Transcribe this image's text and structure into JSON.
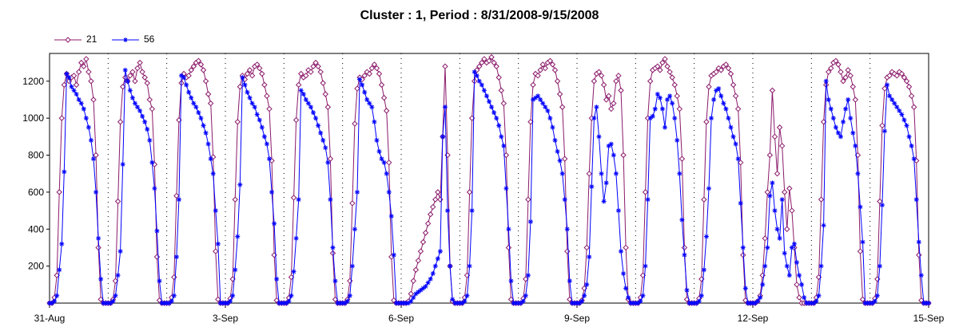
{
  "chart_data": {
    "type": "line",
    "title": "Cluster : 1, Period : 8/31/2008-9/15/2008",
    "xlabel": "",
    "ylabel": "",
    "x_tick_labels": [
      "31-Aug",
      "3-Sep",
      "6-Sep",
      "9-Sep",
      "12-Sep",
      "15-Sep"
    ],
    "xlim_days": [
      0,
      15
    ],
    "ylim": [
      0,
      1350
    ],
    "y_ticks": [
      200,
      400,
      600,
      800,
      1000,
      1200
    ],
    "legend_position": "top-left",
    "grid": "dotted vertical lines at each day",
    "series": [
      {
        "name": "21",
        "color": "#8B1A6B",
        "marker": "diamond",
        "days": [
          {
            "day": 0,
            "samples": [
              0,
              0,
              30,
              150,
              600,
              1000,
              1180,
              1240,
              1200,
              1220,
              1230,
              1180,
              1250,
              1300,
              1280,
              1320,
              1250,
              1200,
              1100,
              800,
              300,
              20,
              0,
              0
            ]
          },
          {
            "day": 1,
            "samples": [
              0,
              0,
              20,
              120,
              550,
              980,
              1170,
              1220,
              1200,
              1230,
              1250,
              1200,
              1270,
              1300,
              1250,
              1220,
              1190,
              1100,
              1050,
              750,
              250,
              15,
              0,
              0
            ]
          },
          {
            "day": 2,
            "samples": [
              0,
              0,
              30,
              140,
              580,
              990,
              1190,
              1240,
              1220,
              1230,
              1260,
              1280,
              1300,
              1310,
              1290,
              1260,
              1200,
              1130,
              1080,
              790,
              280,
              20,
              0,
              0
            ]
          },
          {
            "day": 3,
            "samples": [
              0,
              0,
              25,
              130,
              560,
              980,
              1170,
              1230,
              1210,
              1240,
              1260,
              1230,
              1280,
              1290,
              1270,
              1240,
              1180,
              1120,
              1050,
              770,
              260,
              15,
              0,
              0
            ]
          },
          {
            "day": 4,
            "samples": [
              0,
              0,
              28,
              140,
              570,
              990,
              1180,
              1240,
              1220,
              1230,
              1260,
              1250,
              1280,
              1300,
              1280,
              1250,
              1190,
              1130,
              1060,
              780,
              270,
              20,
              0,
              0
            ]
          },
          {
            "day": 5,
            "samples": [
              0,
              0,
              20,
              120,
              540,
              970,
              1160,
              1220,
              1210,
              1230,
              1250,
              1240,
              1270,
              1290,
              1270,
              1240,
              1180,
              1110,
              1040,
              760,
              250,
              15,
              0,
              0
            ]
          },
          {
            "day": 6,
            "samples": [
              0,
              0,
              0,
              10,
              50,
              120,
              180,
              230,
              280,
              330,
              380,
              430,
              480,
              520,
              560,
              600,
              560,
              900,
              1280,
              800,
              200,
              10,
              0,
              0
            ]
          },
          {
            "day": 7,
            "samples": [
              0,
              0,
              30,
              150,
              600,
              1000,
              1200,
              1260,
              1280,
              1300,
              1320,
              1300,
              1310,
              1330,
              1300,
              1280,
              1220,
              1150,
              1080,
              800,
              300,
              20,
              0,
              0
            ]
          },
          {
            "day": 8,
            "samples": [
              0,
              0,
              25,
              130,
              560,
              980,
              1180,
              1240,
              1230,
              1260,
              1290,
              1270,
              1300,
              1310,
              1290,
              1260,
              1200,
              1130,
              1060,
              780,
              280,
              20,
              0,
              0
            ]
          },
          {
            "day": 9,
            "samples": [
              0,
              0,
              15,
              80,
              300,
              700,
              1000,
              1200,
              1240,
              1250,
              1230,
              1180,
              1100,
              1120,
              1050,
              1080,
              1200,
              1230,
              1150,
              800,
              300,
              20,
              0,
              0
            ]
          },
          {
            "day": 10,
            "samples": [
              0,
              0,
              30,
              150,
              600,
              1000,
              1200,
              1260,
              1270,
              1280,
              1260,
              1300,
              1320,
              1280,
              1250,
              1220,
              1180,
              1120,
              1050,
              780,
              300,
              20,
              0,
              0
            ]
          },
          {
            "day": 11,
            "samples": [
              0,
              0,
              25,
              130,
              560,
              980,
              1170,
              1230,
              1240,
              1250,
              1270,
              1260,
              1280,
              1290,
              1270,
              1240,
              1180,
              1120,
              1050,
              760,
              260,
              15,
              0,
              0
            ]
          },
          {
            "day": 12,
            "samples": [
              0,
              0,
              10,
              40,
              150,
              350,
              600,
              800,
              1150,
              900,
              700,
              950,
              850,
              600,
              400,
              620,
              500,
              300,
              100,
              30,
              0,
              0,
              0,
              0
            ]
          },
          {
            "day": 13,
            "samples": [
              0,
              0,
              30,
              140,
              560,
              980,
              1180,
              1250,
              1270,
              1300,
              1310,
              1290,
              1250,
              1200,
              1220,
              1260,
              1230,
              1170,
              1100,
              800,
              280,
              20,
              0,
              0
            ]
          },
          {
            "day": 14,
            "samples": [
              0,
              0,
              25,
              130,
              550,
              960,
              1160,
              1220,
              1230,
              1250,
              1240,
              1230,
              1250,
              1240,
              1220,
              1200,
              1170,
              1120,
              1060,
              770,
              260,
              15,
              0,
              0
            ]
          }
        ]
      },
      {
        "name": "56",
        "color": "#0000FF",
        "marker": "asterisk",
        "days": [
          {
            "day": 0,
            "samples": [
              0,
              0,
              10,
              40,
              180,
              320,
              710,
              1240,
              1220,
              1170,
              1150,
              1130,
              1100,
              1080,
              1050,
              1000,
              950,
              880,
              780,
              600,
              350,
              130,
              0,
              0
            ]
          },
          {
            "day": 1,
            "samples": [
              0,
              0,
              10,
              40,
              150,
              280,
              750,
              1260,
              1200,
              1150,
              1110,
              1080,
              1060,
              1040,
              1010,
              980,
              940,
              880,
              760,
              620,
              390,
              120,
              0,
              0
            ]
          },
          {
            "day": 2,
            "samples": [
              0,
              0,
              10,
              40,
              250,
              560,
              1230,
              1220,
              1180,
              1140,
              1110,
              1080,
              1060,
              1030,
              1000,
              960,
              920,
              860,
              780,
              700,
              500,
              320,
              0,
              0
            ]
          },
          {
            "day": 3,
            "samples": [
              0,
              0,
              10,
              40,
              180,
              360,
              640,
              1220,
              1180,
              1140,
              1110,
              1080,
              1060,
              1020,
              990,
              950,
              900,
              860,
              780,
              600,
              430,
              130,
              0,
              0
            ]
          },
          {
            "day": 4,
            "samples": [
              0,
              0,
              10,
              40,
              170,
              350,
              560,
              1150,
              1130,
              1100,
              1080,
              1060,
              1030,
              1000,
              960,
              920,
              880,
              840,
              760,
              560,
              300,
              120,
              0,
              0
            ]
          },
          {
            "day": 5,
            "samples": [
              0,
              0,
              10,
              40,
              200,
              400,
              600,
              1210,
              1180,
              1140,
              1100,
              1080,
              1060,
              980,
              880,
              820,
              780,
              760,
              700,
              600,
              470,
              260,
              0,
              0
            ]
          },
          {
            "day": 6,
            "samples": [
              0,
              0,
              0,
              0,
              10,
              30,
              50,
              60,
              70,
              80,
              90,
              110,
              130,
              160,
              200,
              240,
              280,
              900,
              1060,
              500,
              200,
              20,
              0,
              0
            ]
          },
          {
            "day": 7,
            "samples": [
              0,
              0,
              10,
              40,
              200,
              500,
              1250,
              1230,
              1200,
              1180,
              1150,
              1120,
              1090,
              1060,
              1030,
              1000,
              960,
              900,
              850,
              620,
              400,
              120,
              0,
              0
            ]
          },
          {
            "day": 8,
            "samples": [
              0,
              0,
              10,
              40,
              150,
              440,
              1100,
              1110,
              1120,
              1100,
              1080,
              1060,
              1040,
              1000,
              950,
              880,
              820,
              770,
              700,
              560,
              400,
              120,
              0,
              0
            ]
          },
          {
            "day": 9,
            "samples": [
              0,
              0,
              10,
              40,
              100,
              250,
              630,
              1000,
              1060,
              900,
              700,
              550,
              650,
              850,
              860,
              800,
              700,
              500,
              280,
              160,
              80,
              30,
              0,
              0
            ]
          },
          {
            "day": 10,
            "samples": [
              0,
              0,
              10,
              40,
              200,
              560,
              1000,
              1010,
              1050,
              1130,
              1110,
              1050,
              950,
              1100,
              1120,
              1080,
              1000,
              880,
              700,
              450,
              260,
              70,
              0,
              0
            ]
          },
          {
            "day": 11,
            "samples": [
              0,
              0,
              10,
              40,
              180,
              360,
              620,
              1000,
              1100,
              1150,
              1160,
              1120,
              1080,
              1050,
              1000,
              950,
              900,
              860,
              780,
              540,
              300,
              80,
              0,
              0
            ]
          },
          {
            "day": 12,
            "samples": [
              0,
              0,
              10,
              30,
              100,
              200,
              300,
              580,
              650,
              500,
              400,
              350,
              560,
              270,
              200,
              150,
              300,
              320,
              220,
              150,
              100,
              30,
              0,
              0
            ]
          },
          {
            "day": 13,
            "samples": [
              0,
              0,
              10,
              40,
              200,
              420,
              1200,
              1100,
              1050,
              1000,
              950,
              920,
              900,
              980,
              1050,
              1100,
              1000,
              920,
              850,
              700,
              520,
              330,
              0,
              0
            ]
          },
          {
            "day": 14,
            "samples": [
              0,
              0,
              10,
              40,
              200,
              530,
              930,
              1180,
              1120,
              1100,
              1080,
              1060,
              1040,
              1020,
              990,
              960,
              900,
              850,
              780,
              560,
              330,
              150,
              0,
              0
            ]
          }
        ]
      }
    ]
  }
}
